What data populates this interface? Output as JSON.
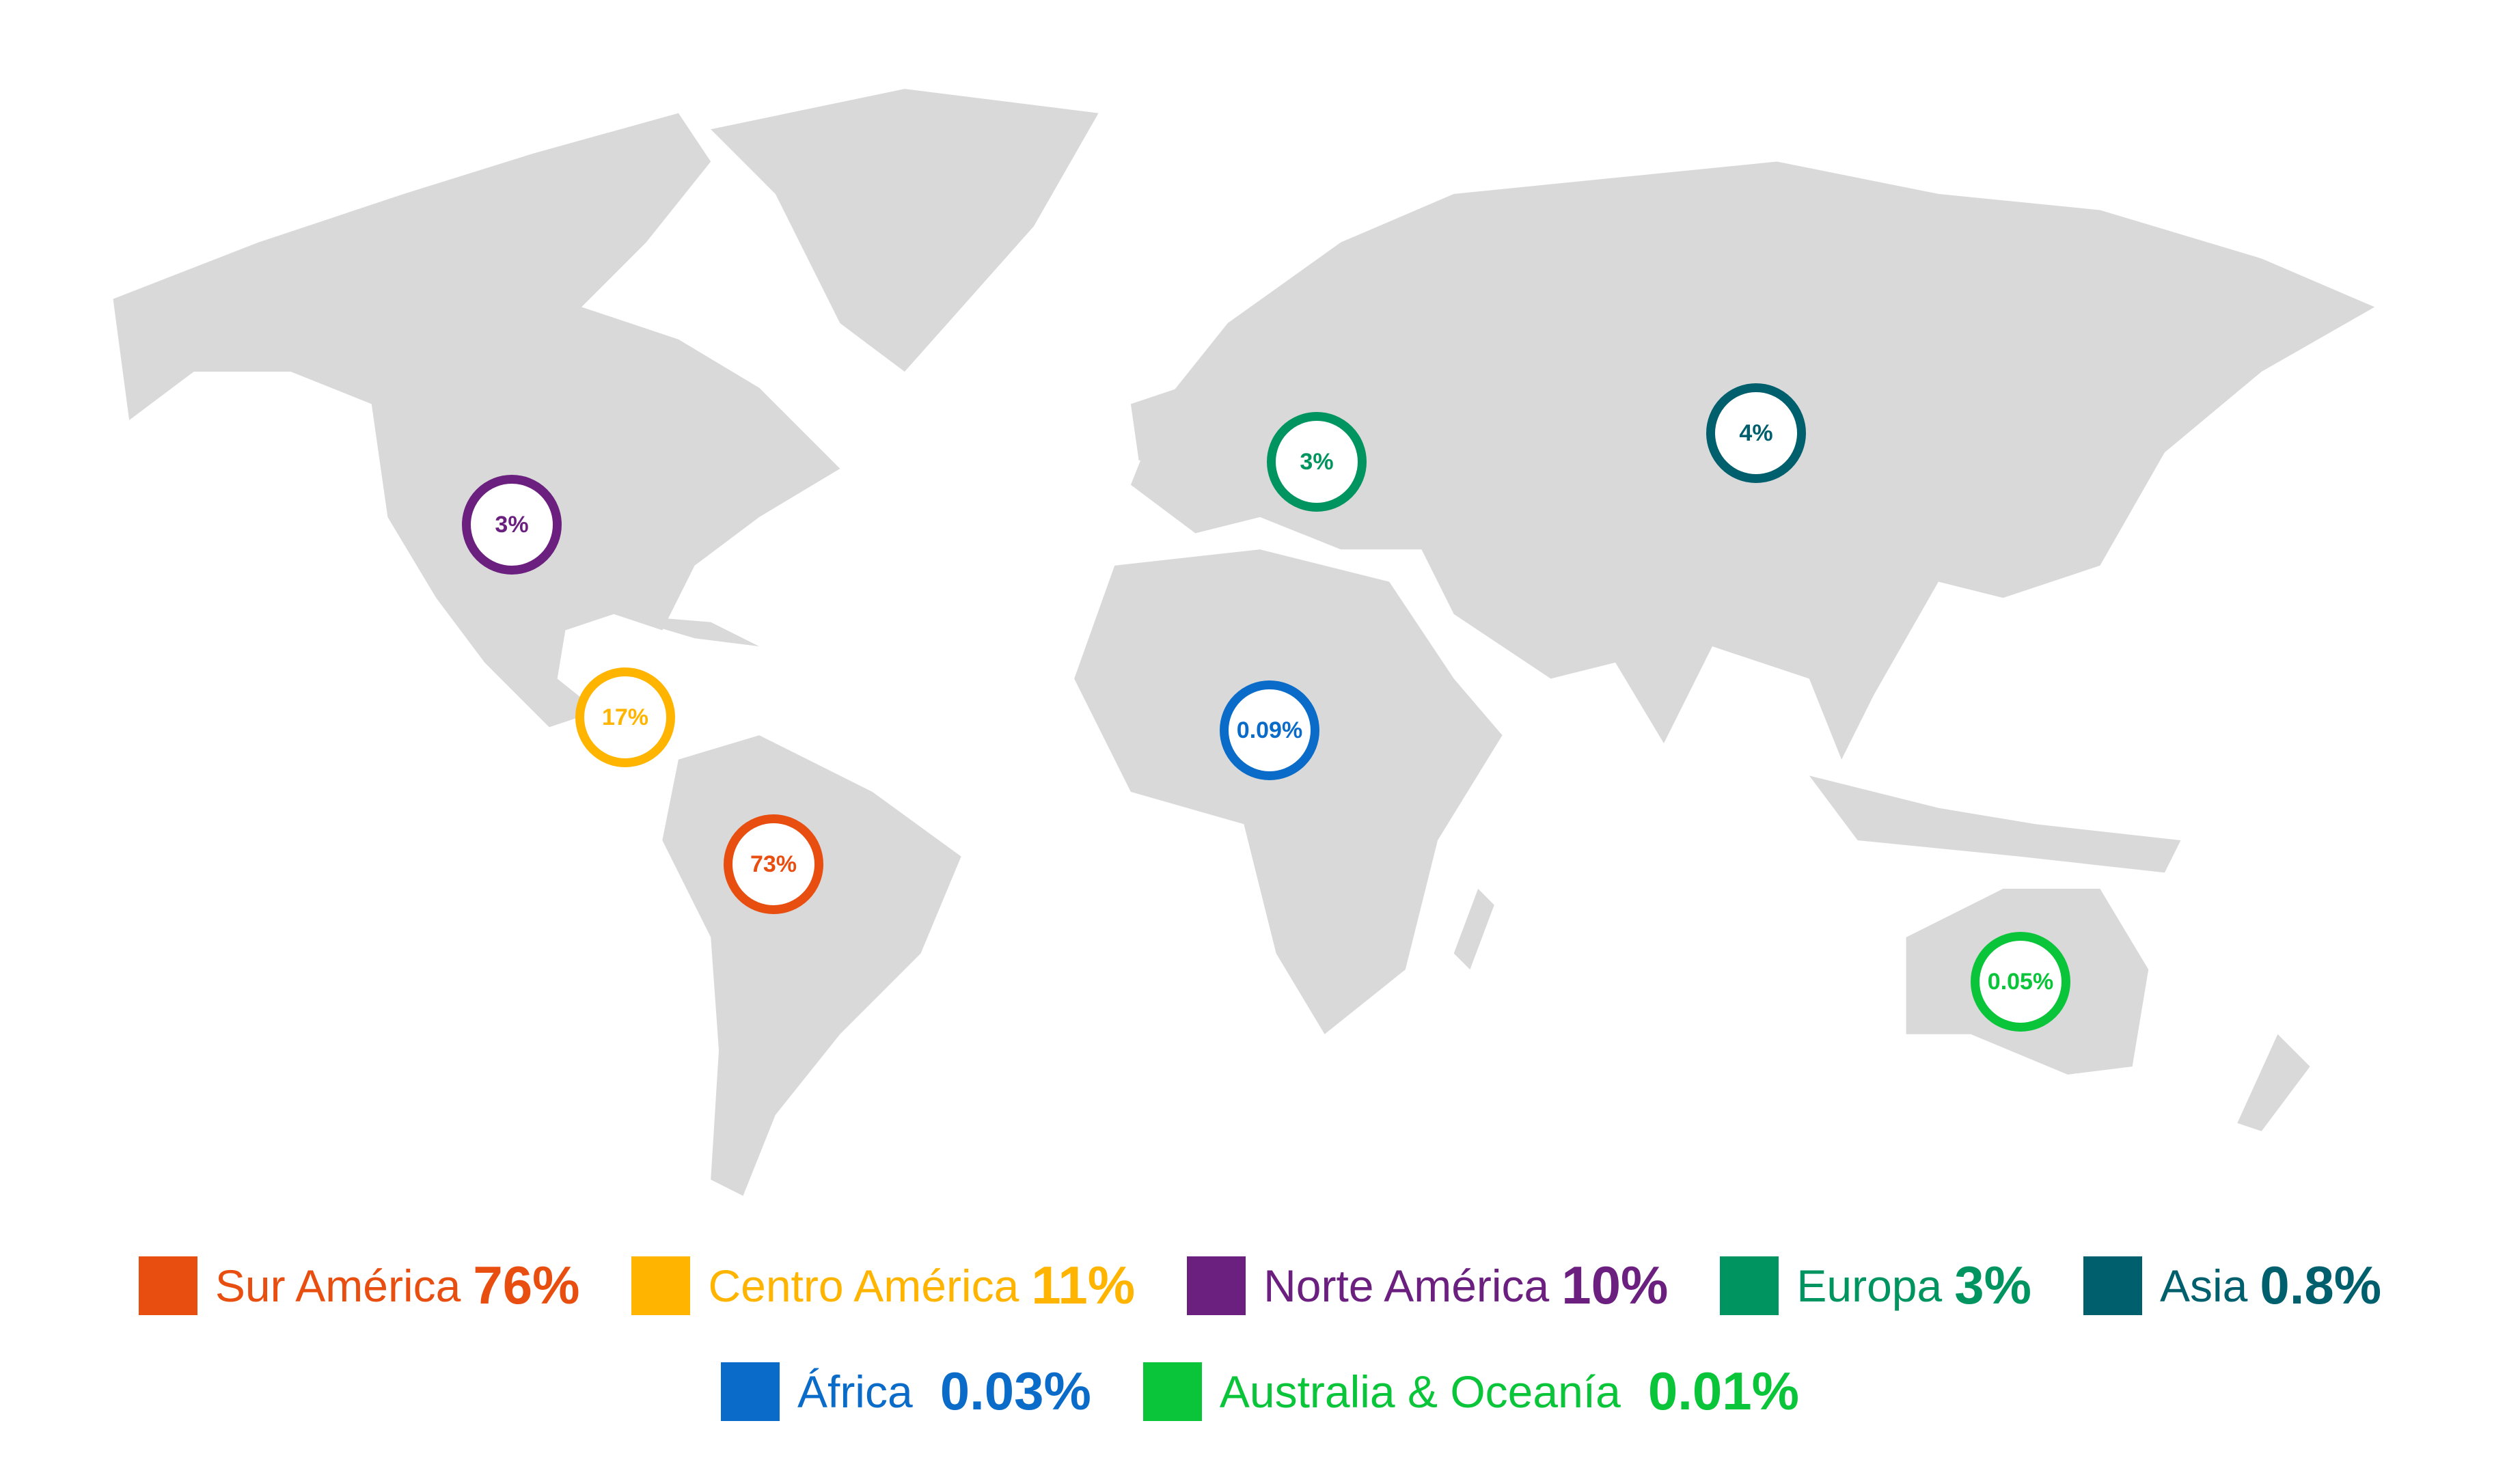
{
  "map": {
    "land_color": "#d9d9d9",
    "markers": [
      {
        "region": "Norte América",
        "value": "3%",
        "color": "#6b1f7f"
      },
      {
        "region": "Centro América",
        "value": "17%",
        "color": "#ffb400"
      },
      {
        "region": "Sur América",
        "value": "73%",
        "color": "#e84e10"
      },
      {
        "region": "Europa",
        "value": "3%",
        "color": "#009560"
      },
      {
        "region": "Asia",
        "value": "4%",
        "color": "#005f6d"
      },
      {
        "region": "África",
        "value": "0.09%",
        "color": "#0a6cc8"
      },
      {
        "region": "Australia & Oceanía",
        "value": "0.05%",
        "color": "#0ac43a"
      }
    ]
  },
  "legend": {
    "row1": [
      {
        "label": "Sur América",
        "value": "76%",
        "color": "#e84e10"
      },
      {
        "label": "Centro América",
        "value": "11%",
        "color": "#ffb400"
      },
      {
        "label": "Norte América",
        "value": "10%",
        "color": "#6b1f7f"
      },
      {
        "label": "Europa",
        "value": "3%",
        "color": "#009560"
      },
      {
        "label": "Asia",
        "value": "0.8%",
        "color": "#005f6d"
      }
    ],
    "row2": [
      {
        "label": "África",
        "value": "0.03%",
        "color": "#0a6cc8"
      },
      {
        "label": "Australia & Oceanía",
        "value": "0.01%",
        "color": "#0ac43a"
      }
    ]
  }
}
